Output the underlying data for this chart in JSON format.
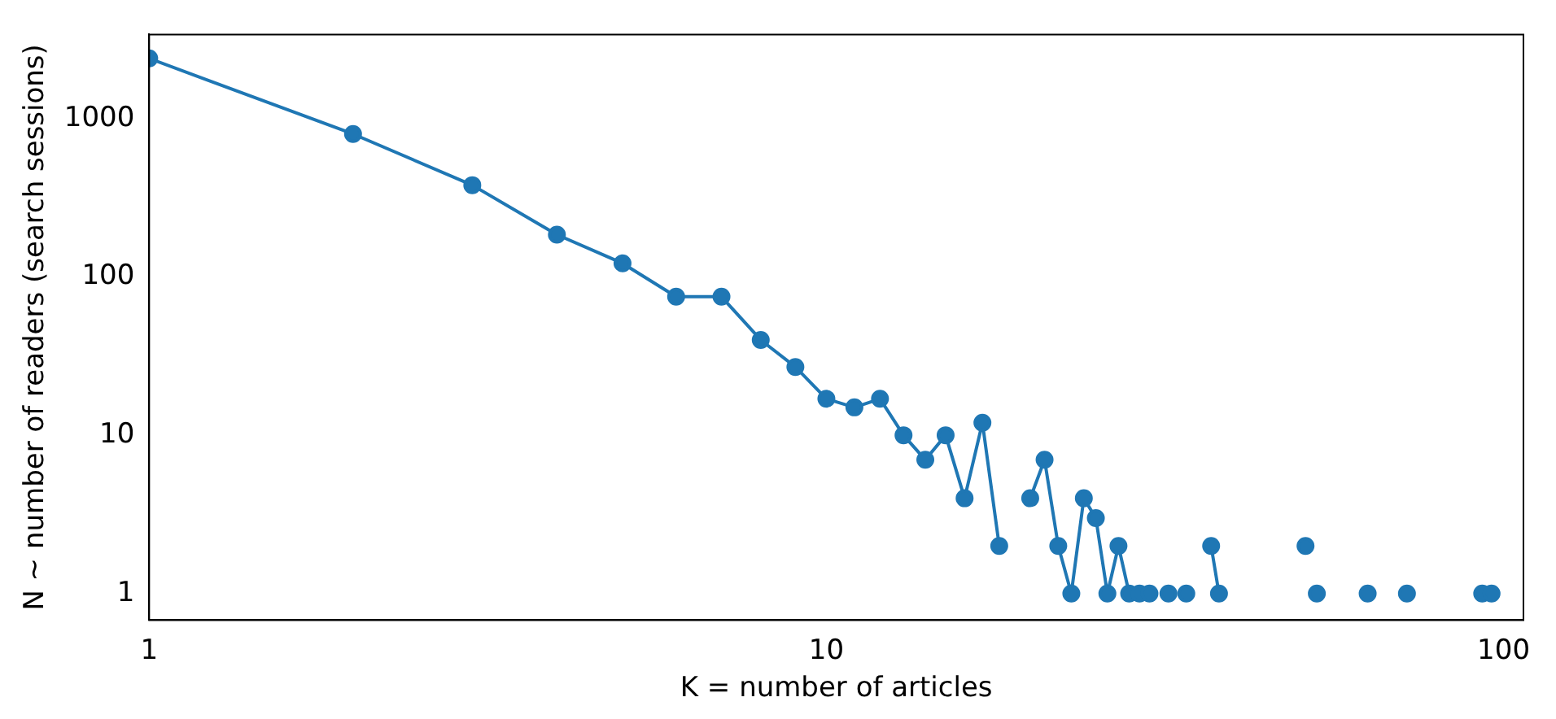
{
  "chart_data": {
    "type": "line",
    "xlabel": "K = number of articles",
    "ylabel": "N ~ number of readers (search sessions)",
    "log": "xy",
    "xlim": [
      1,
      107
    ],
    "ylim": [
      0.68,
      3400
    ],
    "xticks": [
      1,
      10,
      100
    ],
    "yticks": [
      1,
      10,
      100,
      1000
    ],
    "grid": false,
    "legend": false,
    "marker": "circle",
    "line_style": "solid",
    "series": [
      {
        "color": "#1f77b4",
        "x": [
          1,
          2,
          3,
          4,
          5,
          6,
          7,
          8,
          9,
          10,
          11,
          12,
          13,
          14,
          15,
          16,
          17,
          18,
          19,
          20,
          21,
          22,
          23,
          24,
          25,
          26,
          27,
          28,
          29,
          30,
          31,
          32,
          33,
          34,
          35,
          37,
          38,
          39,
          51,
          52,
          53,
          54,
          63,
          64,
          72,
          73,
          93,
          94,
          96
        ],
        "values": [
          2400,
          800,
          380,
          185,
          122,
          75,
          75,
          40,
          27,
          17,
          15,
          17,
          10,
          7,
          10,
          4,
          12,
          2,
          null,
          4,
          7,
          2,
          1,
          4,
          3,
          1,
          2,
          1,
          1,
          1,
          null,
          1,
          null,
          1,
          null,
          2,
          1,
          null,
          2,
          null,
          1,
          null,
          1,
          null,
          1,
          null,
          1,
          null,
          1
        ]
      }
    ]
  }
}
